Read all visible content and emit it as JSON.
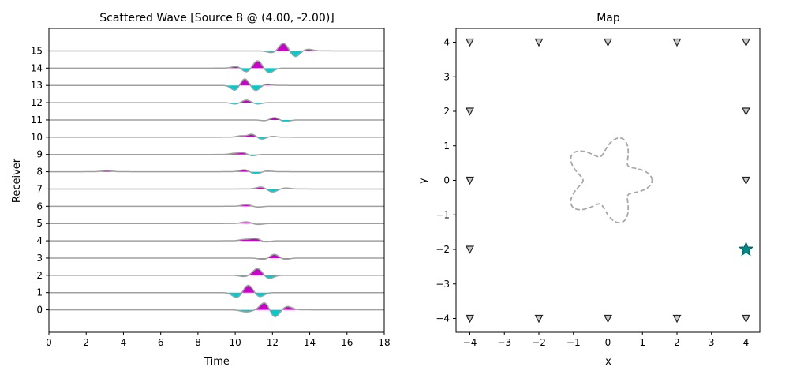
{
  "chart_data": [
    {
      "type": "line",
      "title": "Scattered Wave [Source 8 @ (4.00, -2.00)]",
      "xlabel": "Time",
      "ylabel": "Receiver",
      "xlim": [
        0,
        18
      ],
      "ylim": [
        -1.3,
        16.3
      ],
      "xticks": [
        "0",
        "2",
        "4",
        "6",
        "8",
        "10",
        "12",
        "14",
        "16",
        "18"
      ],
      "yticks": [
        "0",
        "1",
        "2",
        "3",
        "4",
        "5",
        "6",
        "7",
        "8",
        "9",
        "10",
        "11",
        "12",
        "13",
        "14",
        "15"
      ],
      "colors": {
        "positive_fill": "#cc00cc",
        "negative_fill": "#00cccc",
        "trace": "#a0a0a0"
      },
      "series": [
        {
          "receiver": 0,
          "pulses": [
            [
              10.6,
              -0.12,
              0.3
            ],
            [
              11.6,
              0.45,
              0.25
            ],
            [
              12.1,
              -0.45,
              0.25
            ],
            [
              12.8,
              0.2,
              0.25
            ]
          ]
        },
        {
          "receiver": 1,
          "pulses": [
            [
              10.1,
              -0.3,
              0.25
            ],
            [
              10.7,
              0.45,
              0.25
            ],
            [
              11.3,
              -0.25,
              0.25
            ]
          ]
        },
        {
          "receiver": 2,
          "pulses": [
            [
              10.5,
              -0.08,
              0.25
            ],
            [
              11.2,
              0.4,
              0.25
            ],
            [
              11.8,
              -0.2,
              0.25
            ]
          ]
        },
        {
          "receiver": 3,
          "pulses": [
            [
              11.5,
              -0.08,
              0.25
            ],
            [
              12.1,
              0.22,
              0.22
            ],
            [
              12.7,
              -0.08,
              0.22
            ]
          ]
        },
        {
          "receiver": 4,
          "pulses": [
            [
              10.5,
              0.08,
              0.25
            ],
            [
              11.1,
              0.15,
              0.25
            ],
            [
              11.6,
              -0.08,
              0.25
            ]
          ]
        },
        {
          "receiver": 5,
          "pulses": [
            [
              10.6,
              0.1,
              0.25
            ],
            [
              11.2,
              -0.06,
              0.25
            ]
          ]
        },
        {
          "receiver": 6,
          "pulses": [
            [
              10.6,
              0.1,
              0.25
            ],
            [
              11.2,
              -0.05,
              0.25
            ]
          ]
        },
        {
          "receiver": 7,
          "pulses": [
            [
              11.4,
              0.12,
              0.25
            ],
            [
              12.0,
              -0.18,
              0.25
            ],
            [
              12.7,
              0.06,
              0.25
            ]
          ]
        },
        {
          "receiver": 8,
          "pulses": [
            [
              3.1,
              0.08,
              0.25
            ],
            [
              10.5,
              0.12,
              0.25
            ],
            [
              11.1,
              -0.14,
              0.25
            ],
            [
              11.7,
              0.05,
              0.25
            ]
          ]
        },
        {
          "receiver": 9,
          "pulses": [
            [
              9.9,
              0.06,
              0.22
            ],
            [
              10.4,
              0.12,
              0.22
            ],
            [
              10.9,
              -0.08,
              0.22
            ]
          ]
        },
        {
          "receiver": 10,
          "pulses": [
            [
              10.3,
              0.08,
              0.22
            ],
            [
              10.9,
              0.18,
              0.22
            ],
            [
              11.4,
              -0.12,
              0.22
            ],
            [
              12.0,
              0.05,
              0.22
            ]
          ]
        },
        {
          "receiver": 11,
          "pulses": [
            [
              11.6,
              -0.05,
              0.22
            ],
            [
              12.1,
              0.14,
              0.22
            ],
            [
              12.7,
              -0.1,
              0.22
            ]
          ]
        },
        {
          "receiver": 12,
          "pulses": [
            [
              10.0,
              -0.08,
              0.22
            ],
            [
              10.6,
              0.15,
              0.22
            ],
            [
              11.2,
              -0.08,
              0.22
            ]
          ]
        },
        {
          "receiver": 13,
          "pulses": [
            [
              10.0,
              -0.3,
              0.22
            ],
            [
              10.5,
              0.4,
              0.22
            ],
            [
              11.1,
              -0.3,
              0.22
            ],
            [
              11.7,
              0.08,
              0.22
            ]
          ]
        },
        {
          "receiver": 14,
          "pulses": [
            [
              10.1,
              0.12,
              0.25
            ],
            [
              10.6,
              -0.25,
              0.25
            ],
            [
              11.2,
              0.45,
              0.25
            ],
            [
              11.8,
              -0.28,
              0.25
            ]
          ]
        },
        {
          "receiver": 15,
          "pulses": [
            [
              12.0,
              -0.12,
              0.25
            ],
            [
              12.6,
              0.45,
              0.25
            ],
            [
              13.2,
              -0.35,
              0.25
            ],
            [
              13.9,
              0.1,
              0.25
            ]
          ]
        }
      ]
    },
    {
      "type": "scatter",
      "title": "Map",
      "xlabel": "x",
      "ylabel": "y",
      "xlim": [
        -4.4,
        4.4
      ],
      "ylim": [
        -4.4,
        4.4
      ],
      "xticks": [
        "−4",
        "−3",
        "−2",
        "−1",
        "0",
        "1",
        "2",
        "3",
        "4"
      ],
      "yticks": [
        "−4",
        "−3",
        "−2",
        "−1",
        "0",
        "1",
        "2",
        "3",
        "4"
      ],
      "colors": {
        "receiver_fill": "#c8c8c8",
        "receiver_edge": "#222222",
        "source": "#008b8b",
        "obstacle": "#a8a8a8"
      },
      "receivers": [
        [
          -4,
          4
        ],
        [
          -2,
          4
        ],
        [
          0,
          4
        ],
        [
          2,
          4
        ],
        [
          4,
          4
        ],
        [
          -4,
          2
        ],
        [
          4,
          2
        ],
        [
          -4,
          0
        ],
        [
          4,
          0
        ],
        [
          -4,
          -2
        ],
        [
          -4,
          -4
        ],
        [
          -2,
          -4
        ],
        [
          0,
          -4
        ],
        [
          2,
          -4
        ],
        [
          4,
          -4
        ]
      ],
      "source": [
        4,
        -2
      ],
      "obstacle": {
        "shape": "five-lobed star curve",
        "center": [
          0,
          0
        ],
        "mean_radius": 1.0,
        "lobe_amplitude": 0.28,
        "lobes": 5
      }
    }
  ]
}
